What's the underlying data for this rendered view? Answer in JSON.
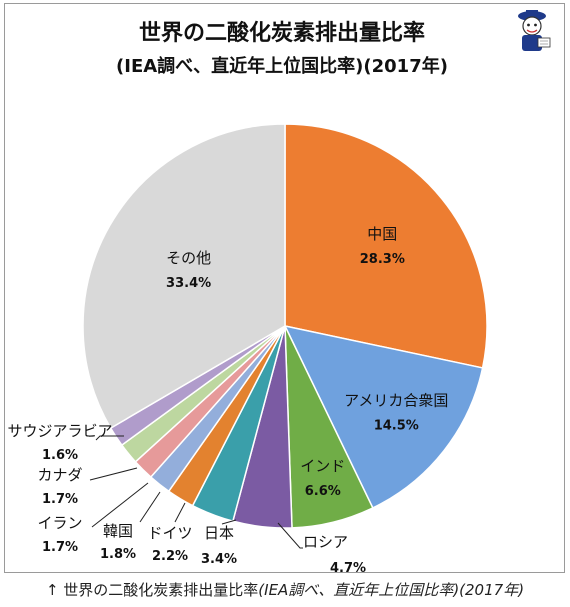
{
  "title": "世界の二酸化炭素排出量比率",
  "subtitle": "(IEA調べ、直近年上位国比率)(2017年)",
  "caption": {
    "arrow": "↑",
    "text": " 世界の二酸化炭素排出量比率",
    "italic": "(IEA調べ、直近年上位国比率)(2017年)"
  },
  "chart_data": {
    "type": "pie",
    "title": "世界の二酸化炭素排出量比率",
    "subtitle": "(IEA調べ、直近年上位国比率)(2017年)",
    "slices": [
      {
        "label": "中国",
        "value": 28.3,
        "value_label": "28.3%",
        "color": "#ED7D31"
      },
      {
        "label": "アメリカ合衆国",
        "value": 14.5,
        "value_label": "14.5%",
        "color": "#6FA1DE"
      },
      {
        "label": "インド",
        "value": 6.6,
        "value_label": "6.6%",
        "color": "#70AD47"
      },
      {
        "label": "ロシア",
        "value": 4.7,
        "value_label": "4.7%",
        "color": "#7B5BA3"
      },
      {
        "label": "日本",
        "value": 3.4,
        "value_label": "3.4%",
        "color": "#3A9FAA"
      },
      {
        "label": "ドイツ",
        "value": 2.2,
        "value_label": "2.2%",
        "color": "#E3822F"
      },
      {
        "label": "韓国",
        "value": 1.8,
        "value_label": "1.8%",
        "color": "#93AEDB"
      },
      {
        "label": "イラン",
        "value": 1.7,
        "value_label": "1.7%",
        "color": "#E69A9A"
      },
      {
        "label": "カナダ",
        "value": 1.7,
        "value_label": "1.7%",
        "color": "#BDD7A0"
      },
      {
        "label": "サウジアラビア",
        "value": 1.6,
        "value_label": "1.6%",
        "color": "#B09CCB"
      },
      {
        "label": "その他",
        "value": 33.4,
        "value_label": "33.4%",
        "color": "#D9D9D9"
      }
    ]
  }
}
